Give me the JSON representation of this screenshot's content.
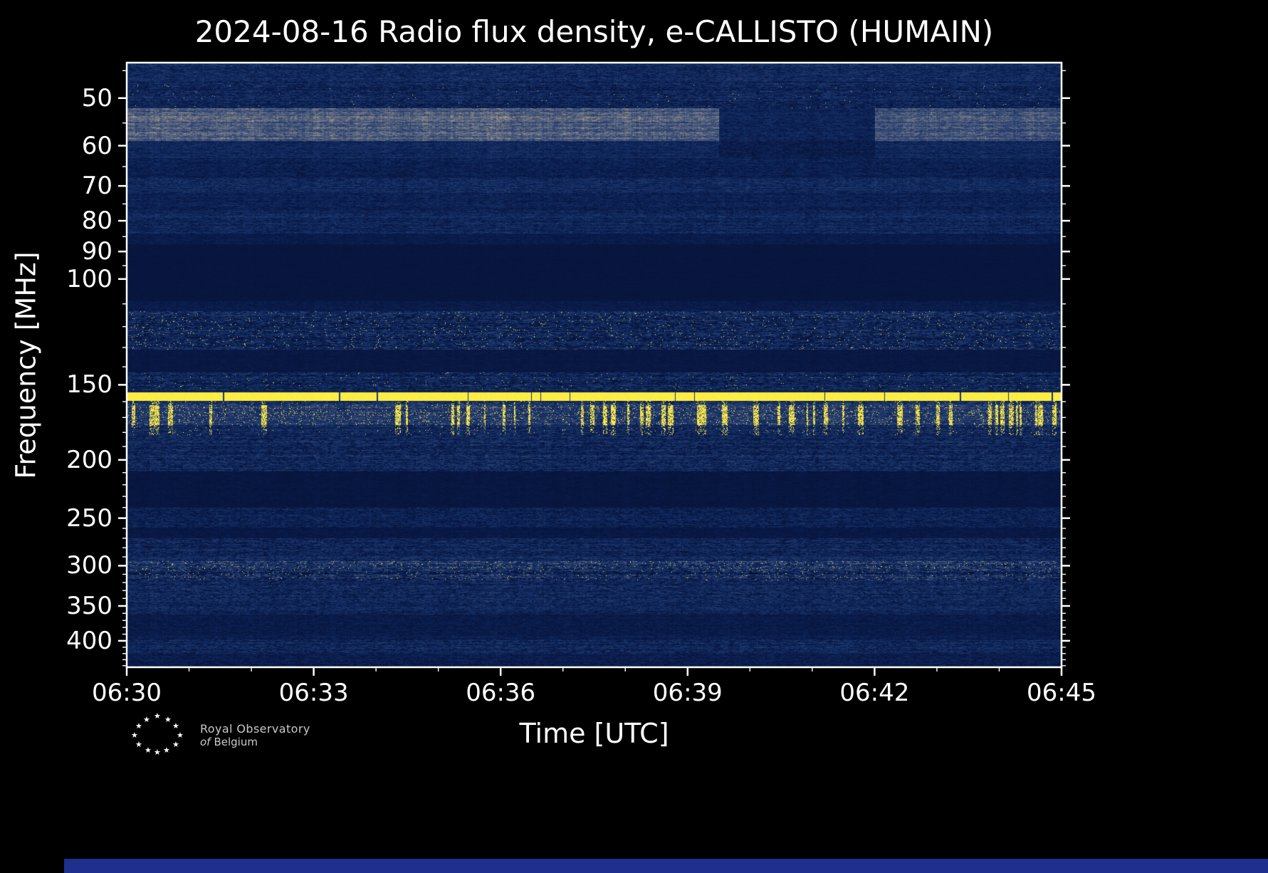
{
  "chart_data": {
    "type": "heatmap",
    "title": "2024-08-16 Radio flux density, e-CALLISTO (HUMAIN)",
    "xlabel": "Time [UTC]",
    "ylabel": "Frequency [MHz]",
    "x_ticks_utc": [
      "06:30",
      "06:33",
      "06:36",
      "06:39",
      "06:42",
      "06:45"
    ],
    "x_range_min": [
      0,
      15
    ],
    "x_minor_tick_interval_min": 1,
    "freq_ticks_mhz": [
      50,
      60,
      70,
      80,
      90,
      100,
      150,
      200,
      250,
      300,
      350,
      400
    ],
    "freq_range_mhz": [
      43.65,
      442.6
    ],
    "freq_scale": "log-inverted",
    "grid": false,
    "legend": "none",
    "colors": {
      "background": "#000000",
      "plot_quiet_blue": "#0f2658",
      "plot_dark_navy": "#081640",
      "grey_band": "#6a7286",
      "bright_line_yellow": "#f9e94a",
      "text": "#ffffff",
      "footer_bar": "#1e2f8e"
    },
    "bands": [
      {
        "f0": 43.65,
        "f1": 47.5,
        "base": 0.3,
        "noise": 0.13,
        "desc": "mottled quiet band at top of plot"
      },
      {
        "f0": 47.5,
        "f1": 52,
        "base": 0.27,
        "noise": 0.15,
        "yellow": 0.002,
        "desc": "sparse bright point bursts near 50 MHz"
      },
      {
        "f0": 52,
        "f1": 59,
        "base": 0.58,
        "noise": 0.1,
        "segments": [
          [
            0,
            0.633,
            1
          ],
          [
            0.633,
            0.8,
            0.45
          ],
          [
            0.8,
            1,
            0.92
          ]
        ],
        "desc": "bright grey-blue band 52-59 MHz, fades between 06:39:30 and 06:42"
      },
      {
        "f0": 59,
        "f1": 63,
        "base": 0.3,
        "noise": 0.1,
        "segments": [
          [
            0,
            0.633,
            1
          ],
          [
            0.633,
            0.8,
            0.7
          ],
          [
            0.8,
            1,
            1
          ]
        ]
      },
      {
        "f0": 63,
        "f1": 68,
        "base": 0.24,
        "noise": 0.1
      },
      {
        "f0": 68,
        "f1": 72,
        "base": 0.3,
        "noise": 0.12,
        "desc": "weak line near 70 MHz"
      },
      {
        "f0": 72,
        "f1": 77,
        "base": 0.25,
        "noise": 0.1
      },
      {
        "f0": 77,
        "f1": 84,
        "base": 0.29,
        "noise": 0.12
      },
      {
        "f0": 84,
        "f1": 87.5,
        "base": 0.2,
        "noise": 0.06
      },
      {
        "f0": 87.5,
        "f1": 109,
        "base": 0.14,
        "noise": 0.02,
        "colSens": 0.1,
        "desc": "dark flat FM-broadcast notch 88-108 MHz"
      },
      {
        "f0": 109,
        "f1": 113,
        "base": 0.2,
        "noise": 0.06
      },
      {
        "f0": 113,
        "f1": 131,
        "base": 0.28,
        "noise": 0.2,
        "yellow": 0.012,
        "desc": "aeronautical-band speckle with yellow points"
      },
      {
        "f0": 131,
        "f1": 143,
        "base": 0.16,
        "noise": 0.04
      },
      {
        "f0": 143,
        "f1": 153,
        "base": 0.28,
        "noise": 0.18,
        "yellow": 0.006
      },
      {
        "f0": 153,
        "f1": 154.5,
        "base": 0.23,
        "noise": 0.1
      },
      {
        "f0": 154.5,
        "f1": 159.5,
        "base": 0.95,
        "noise": 0.05,
        "solid": true,
        "desc": "strong continuous yellow RFI line near 157 MHz"
      },
      {
        "f0": 159.5,
        "f1": 162,
        "base": 0.34,
        "noise": 0.18,
        "yellow": 0.05,
        "streaky": true
      },
      {
        "f0": 162,
        "f1": 166,
        "base": 0.45,
        "noise": 0.15,
        "yellow": 0.3,
        "streaky": true,
        "desc": "grey band with dense intermittent yellow bursts"
      },
      {
        "f0": 166,
        "f1": 169,
        "base": 0.4,
        "noise": 0.15,
        "yellow": 0.45,
        "streaky": true
      },
      {
        "f0": 169,
        "f1": 175,
        "base": 0.42,
        "noise": 0.15,
        "yellow": 0.3,
        "streaky": true
      },
      {
        "f0": 175,
        "f1": 182,
        "base": 0.3,
        "noise": 0.15,
        "yellow": 0.06,
        "streaky": true
      },
      {
        "f0": 182,
        "f1": 209,
        "base": 0.28,
        "noise": 0.16,
        "desc": "speckled band 182-209 MHz"
      },
      {
        "f0": 209,
        "f1": 240,
        "base": 0.15,
        "noise": 0.04,
        "desc": "dark quiet band"
      },
      {
        "f0": 240,
        "f1": 259,
        "base": 0.25,
        "noise": 0.13,
        "desc": "thin speckled band near 250 MHz"
      },
      {
        "f0": 259,
        "f1": 270,
        "base": 0.17,
        "noise": 0.05
      },
      {
        "f0": 270,
        "f1": 295,
        "base": 0.28,
        "noise": 0.15
      },
      {
        "f0": 295,
        "f1": 304,
        "base": 0.36,
        "noise": 0.22,
        "yellow": 0.02,
        "desc": "active band near 300 MHz with yellow points"
      },
      {
        "f0": 304,
        "f1": 317,
        "base": 0.3,
        "noise": 0.22,
        "yellow": 0.012,
        "colSens": 1.2,
        "desc": "patchy band 305-315 MHz"
      },
      {
        "f0": 317,
        "f1": 345,
        "base": 0.28,
        "noise": 0.15
      },
      {
        "f0": 345,
        "f1": 362,
        "base": 0.27,
        "noise": 0.13
      },
      {
        "f0": 362,
        "f1": 392,
        "base": 0.19,
        "noise": 0.07
      },
      {
        "f0": 392,
        "f1": 398,
        "base": 0.23,
        "noise": 0.09
      },
      {
        "f0": 398,
        "f1": 420,
        "base": 0.28,
        "noise": 0.14,
        "desc": "speckled band 400-420 MHz near bottom"
      },
      {
        "f0": 420,
        "f1": 442.6,
        "base": 0.21,
        "noise": 0.09
      }
    ],
    "features": [
      "Strong continuous RFI band near 156-159 MHz (bright yellow horizontal line)",
      "Dense intermittent yellow vertical bursts 160-175 MHz",
      "Speckled aeronautical-band interference 113-131 MHz",
      "Dark flat FM broadcast notch 88-108 MHz",
      "Bright grey-blue band 52-59 MHz fading between 06:39:30 and 06:42",
      "Active speckled bands 270-345 MHz with yellow points near 300 MHz",
      "Quiet dark bands at 131-143, 209-240, 259-270 and 362-392 MHz",
      "No solar radio burst visible; horizontal structure is terrestrial interference"
    ]
  },
  "logo": {
    "line1": "Royal Observatory",
    "line2_italic": "of",
    "line2_rest": "Belgium",
    "star_glyph": "★"
  }
}
